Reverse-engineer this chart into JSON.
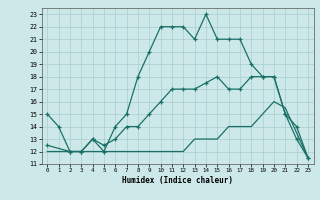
{
  "xlabel": "Humidex (Indice chaleur)",
  "xlim": [
    -0.5,
    23.5
  ],
  "ylim": [
    11,
    23.5
  ],
  "xticks": [
    0,
    1,
    2,
    3,
    4,
    5,
    6,
    7,
    8,
    9,
    10,
    11,
    12,
    13,
    14,
    15,
    16,
    17,
    18,
    19,
    20,
    21,
    22,
    23
  ],
  "yticks": [
    11,
    12,
    13,
    14,
    15,
    16,
    17,
    18,
    19,
    20,
    21,
    22,
    23
  ],
  "bg_color": "#cde8e8",
  "line_color": "#1a7068",
  "grid_color": "#a8cece",
  "line1_x": [
    0,
    1,
    2,
    3,
    4,
    5,
    6,
    7,
    8,
    9,
    10,
    11,
    12,
    13,
    14,
    15,
    16,
    17,
    18,
    19,
    20,
    21,
    22,
    23
  ],
  "line1_y": [
    15,
    14,
    12,
    12,
    13,
    12,
    14,
    15,
    18,
    20,
    22,
    22,
    22,
    21,
    23,
    21,
    21,
    21,
    19,
    18,
    18,
    15,
    13,
    11.5
  ],
  "line2_x": [
    0,
    2,
    3,
    4,
    5,
    6,
    7,
    8,
    9,
    10,
    11,
    12,
    13,
    14,
    15,
    16,
    17,
    18,
    19,
    20,
    21,
    22,
    23
  ],
  "line2_y": [
    12.5,
    12,
    12,
    13,
    12.5,
    13,
    14,
    14,
    15,
    16,
    17,
    17,
    17,
    17.5,
    18,
    17,
    17,
    18,
    18,
    18,
    15,
    14,
    11.5
  ],
  "line3_x": [
    0,
    2,
    3,
    4,
    5,
    6,
    7,
    8,
    9,
    10,
    11,
    12,
    13,
    14,
    15,
    16,
    17,
    18,
    19,
    20,
    21,
    22,
    23
  ],
  "line3_y": [
    12,
    12,
    12,
    12,
    12,
    12,
    12,
    12,
    12,
    12,
    12,
    12,
    13,
    13,
    13,
    14,
    14,
    14,
    15,
    16,
    15.5,
    13.5,
    11.5
  ],
  "figsize": [
    3.2,
    2.0
  ],
  "dpi": 100
}
